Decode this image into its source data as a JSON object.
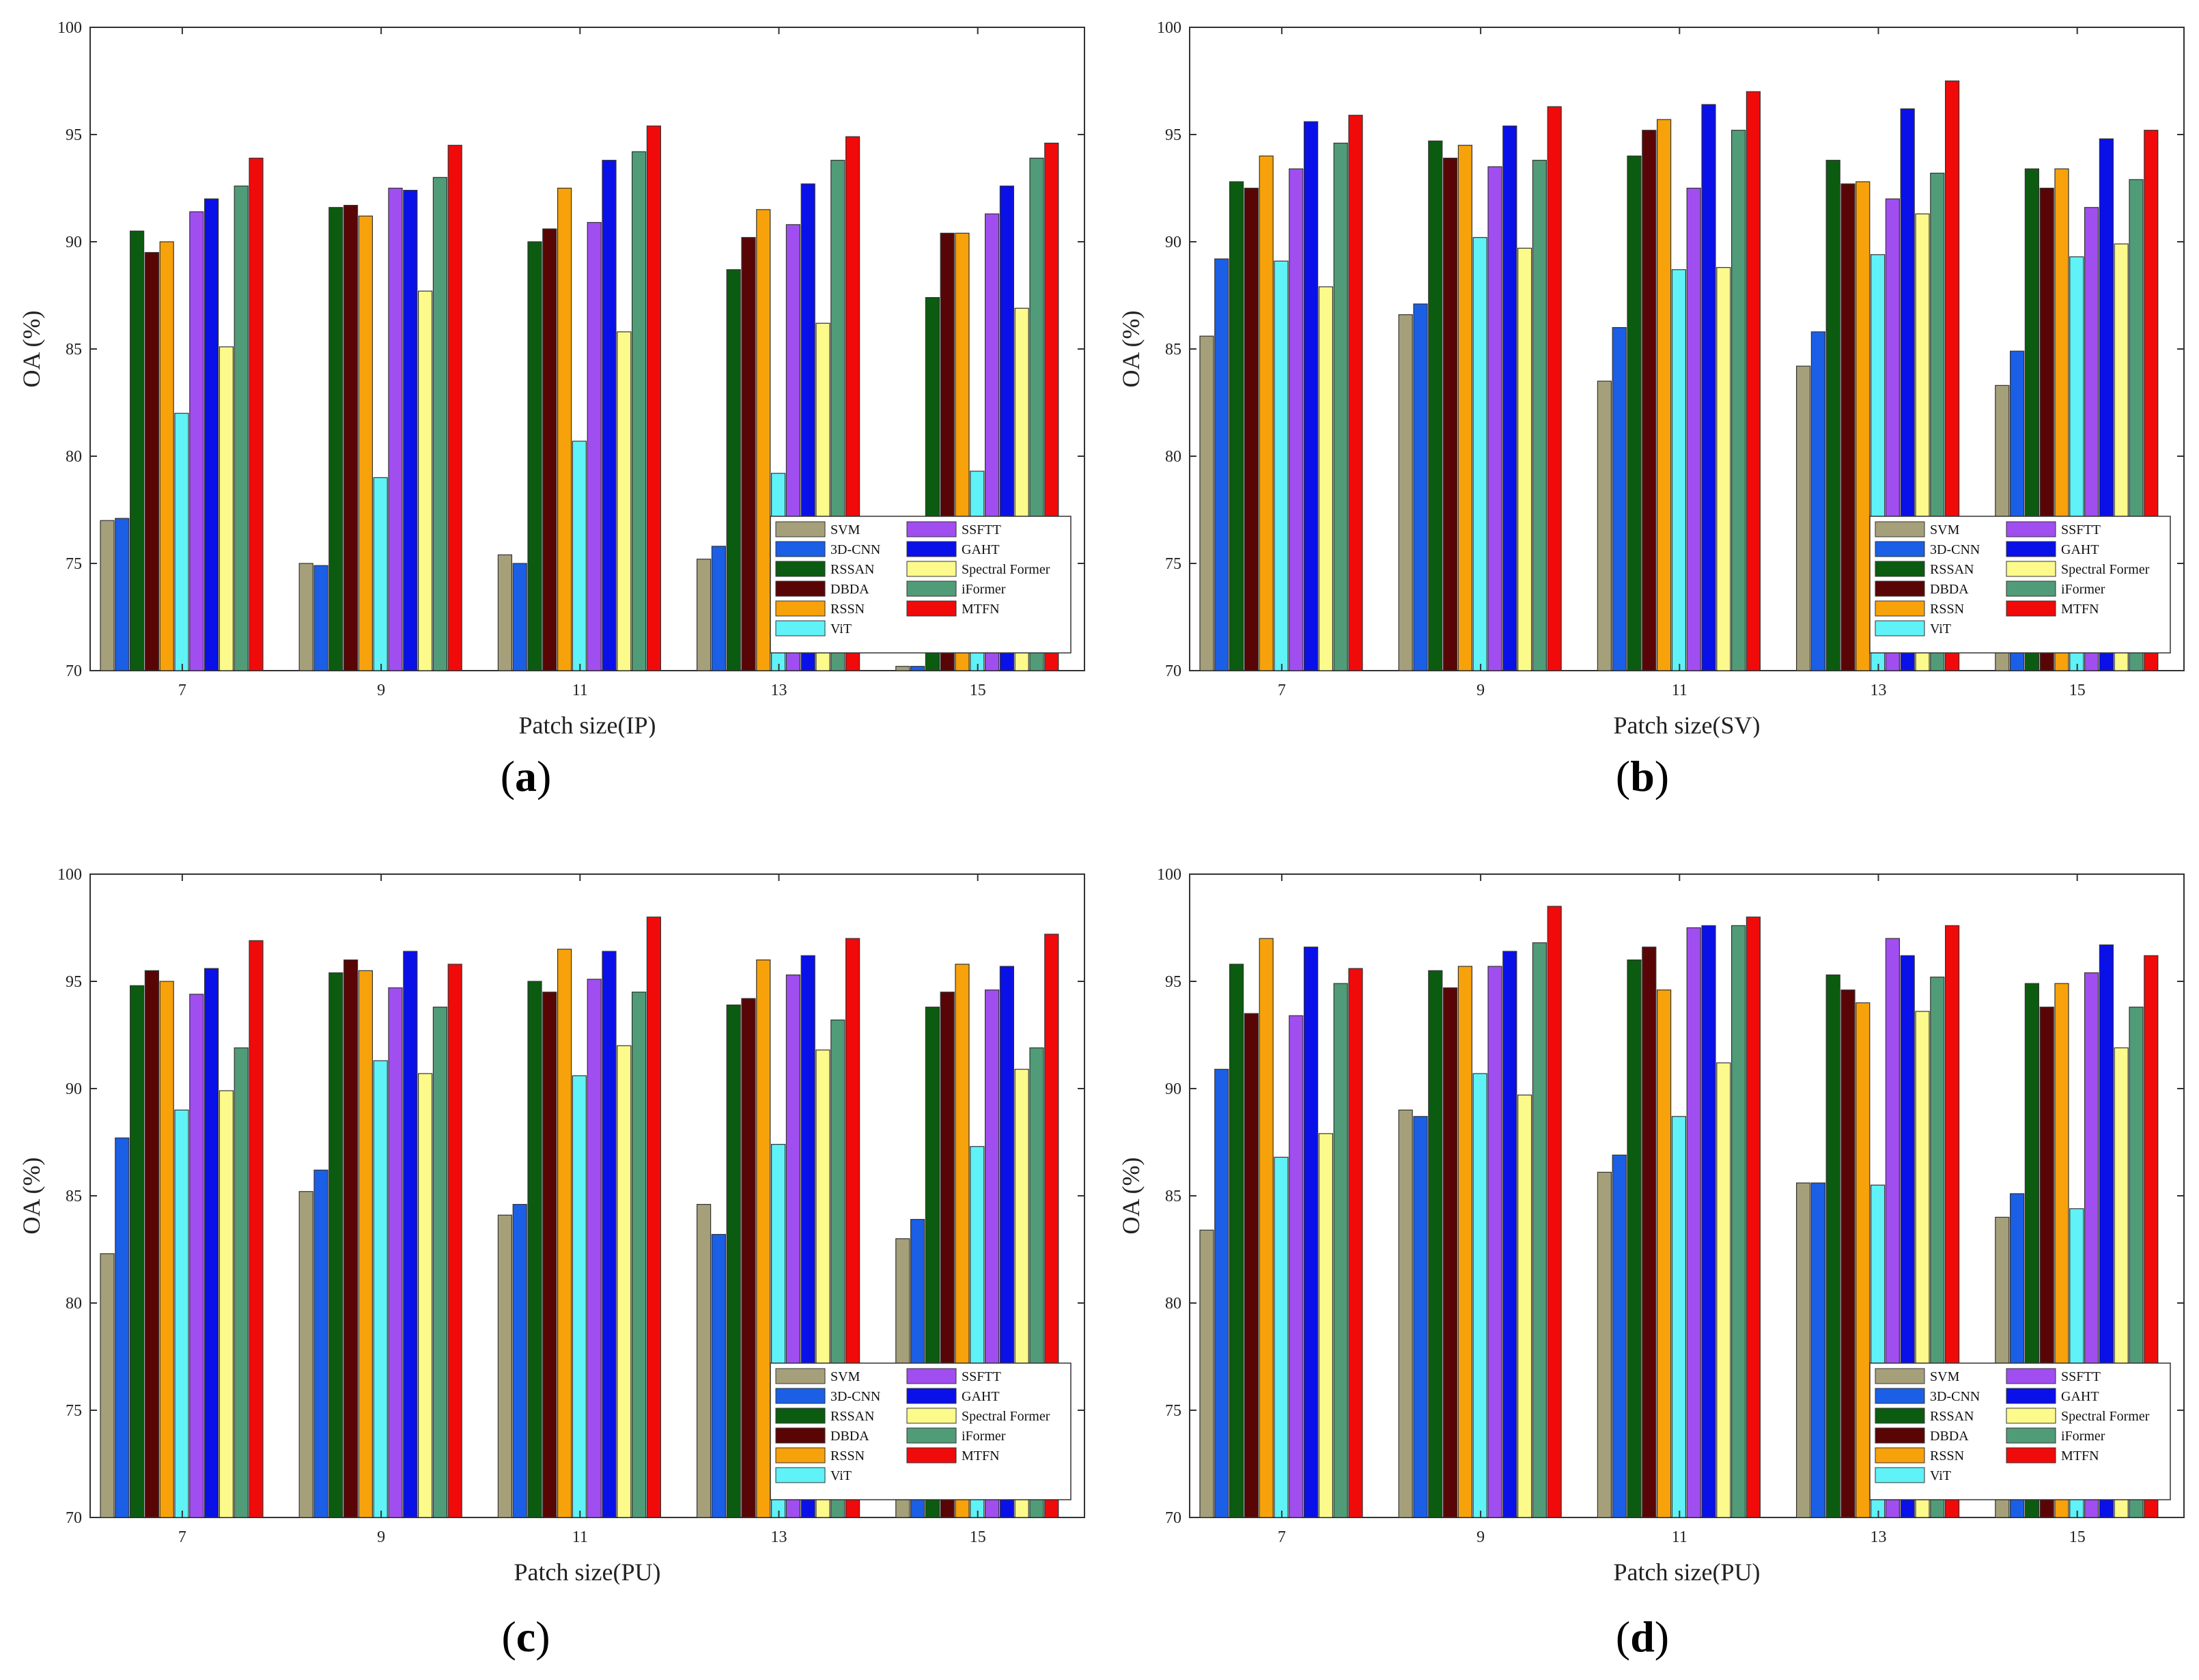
{
  "figure": {
    "panels": [
      {
        "label": "a",
        "xlabel_text": "Patch size(IP)",
        "ylabel_text": "OA (%)"
      },
      {
        "label": "b",
        "xlabel_text": "Patch size(SV)",
        "ylabel_text": "OA (%)"
      },
      {
        "label": "c",
        "xlabel_text": "Patch size(PU)",
        "ylabel_text": "OA (%)"
      },
      {
        "label": "d",
        "xlabel_text": "Patch size(PU)",
        "ylabel_text": "OA (%)"
      }
    ]
  },
  "colors": {
    "SVM": "#a5a07a",
    "3D-CNN": "#1a5fe6",
    "RSSAN": "#0b5c10",
    "DBDA": "#5a0505",
    "RSSN": "#f7a20a",
    "ViT": "#5ff2f7",
    "SSFTT": "#a14ef0",
    "GAHT": "#0a10e8",
    "Spectral Former": "#fbfa8a",
    "iFormer": "#519c78",
    "MTFN": "#f10a0a"
  },
  "chart_data": [
    {
      "type": "bar",
      "title": "",
      "xlabel": "Patch size(IP)",
      "ylabel": "OA (%)",
      "ylim": [
        70,
        100
      ],
      "yticks": [
        70,
        75,
        80,
        85,
        90,
        95,
        100
      ],
      "categories": [
        "7",
        "9",
        "11",
        "13",
        "15"
      ],
      "legend_position": "bottom-right",
      "series": [
        {
          "name": "SVM",
          "values": [
            77.0,
            75.0,
            75.4,
            75.2,
            70.2
          ]
        },
        {
          "name": "3D-CNN",
          "values": [
            77.1,
            74.9,
            75.0,
            75.8,
            70.2
          ]
        },
        {
          "name": "RSSAN",
          "values": [
            90.5,
            91.6,
            90.0,
            88.7,
            87.4
          ]
        },
        {
          "name": "DBDA",
          "values": [
            89.5,
            91.7,
            90.6,
            90.2,
            90.4
          ]
        },
        {
          "name": "RSSN",
          "values": [
            90.0,
            91.2,
            92.5,
            91.5,
            90.4
          ]
        },
        {
          "name": "ViT",
          "values": [
            82.0,
            79.0,
            80.7,
            79.2,
            79.3
          ]
        },
        {
          "name": "SSFTT",
          "values": [
            91.4,
            92.5,
            90.9,
            90.8,
            91.3
          ]
        },
        {
          "name": "GAHT",
          "values": [
            92.0,
            92.4,
            93.8,
            92.7,
            92.6
          ]
        },
        {
          "name": "Spectral Former",
          "values": [
            85.1,
            87.7,
            85.8,
            86.2,
            86.9
          ]
        },
        {
          "name": "iFormer",
          "values": [
            92.6,
            93.0,
            94.2,
            93.8,
            93.9
          ]
        },
        {
          "name": "MTFN",
          "values": [
            93.9,
            94.5,
            95.4,
            94.9,
            94.6
          ]
        }
      ]
    },
    {
      "type": "bar",
      "title": "",
      "xlabel": "Patch size(SV)",
      "ylabel": "OA (%)",
      "ylim": [
        70,
        100
      ],
      "yticks": [
        70,
        75,
        80,
        85,
        90,
        95,
        100
      ],
      "categories": [
        "7",
        "9",
        "11",
        "13",
        "15"
      ],
      "legend_position": "bottom-right",
      "series": [
        {
          "name": "SVM",
          "values": [
            85.6,
            86.6,
            83.5,
            84.2,
            83.3
          ]
        },
        {
          "name": "3D-CNN",
          "values": [
            89.2,
            87.1,
            86.0,
            85.8,
            84.9
          ]
        },
        {
          "name": "RSSAN",
          "values": [
            92.8,
            94.7,
            94.0,
            93.8,
            93.4
          ]
        },
        {
          "name": "DBDA",
          "values": [
            92.5,
            93.9,
            95.2,
            92.7,
            92.5
          ]
        },
        {
          "name": "RSSN",
          "values": [
            94.0,
            94.5,
            95.7,
            92.8,
            93.4
          ]
        },
        {
          "name": "ViT",
          "values": [
            89.1,
            90.2,
            88.7,
            89.4,
            89.3
          ]
        },
        {
          "name": "SSFTT",
          "values": [
            93.4,
            93.5,
            92.5,
            92.0,
            91.6
          ]
        },
        {
          "name": "GAHT",
          "values": [
            95.6,
            95.4,
            96.4,
            96.2,
            94.8
          ]
        },
        {
          "name": "Spectral Former",
          "values": [
            87.9,
            89.7,
            88.8,
            91.3,
            89.9
          ]
        },
        {
          "name": "iFormer",
          "values": [
            94.6,
            93.8,
            95.2,
            93.2,
            92.9
          ]
        },
        {
          "name": "MTFN",
          "values": [
            95.9,
            96.3,
            97.0,
            97.5,
            95.2
          ]
        }
      ]
    },
    {
      "type": "bar",
      "title": "",
      "xlabel": "Patch size(PU)",
      "ylabel": "OA (%)",
      "ylim": [
        70,
        100
      ],
      "yticks": [
        70,
        75,
        80,
        85,
        90,
        95,
        100
      ],
      "categories": [
        "7",
        "9",
        "11",
        "13",
        "15"
      ],
      "legend_position": "bottom-right",
      "series": [
        {
          "name": "SVM",
          "values": [
            82.3,
            85.2,
            84.1,
            84.6,
            83.0
          ]
        },
        {
          "name": "3D-CNN",
          "values": [
            87.7,
            86.2,
            84.6,
            83.2,
            83.9
          ]
        },
        {
          "name": "RSSAN",
          "values": [
            94.8,
            95.4,
            95.0,
            93.9,
            93.8
          ]
        },
        {
          "name": "DBDA",
          "values": [
            95.5,
            96.0,
            94.5,
            94.2,
            94.5
          ]
        },
        {
          "name": "RSSN",
          "values": [
            95.0,
            95.5,
            96.5,
            96.0,
            95.8
          ]
        },
        {
          "name": "ViT",
          "values": [
            89.0,
            91.3,
            90.6,
            87.4,
            87.3
          ]
        },
        {
          "name": "SSFTT",
          "values": [
            94.4,
            94.7,
            95.1,
            95.3,
            94.6
          ]
        },
        {
          "name": "GAHT",
          "values": [
            95.6,
            96.4,
            96.4,
            96.2,
            95.7
          ]
        },
        {
          "name": "Spectral Former",
          "values": [
            89.9,
            90.7,
            92.0,
            91.8,
            90.9
          ]
        },
        {
          "name": "iFormer",
          "values": [
            91.9,
            93.8,
            94.5,
            93.2,
            91.9
          ]
        },
        {
          "name": "MTFN",
          "values": [
            96.9,
            95.8,
            98.0,
            97.0,
            97.2
          ]
        }
      ]
    },
    {
      "type": "bar",
      "title": "",
      "xlabel": "Patch size(PU)",
      "ylabel": "OA (%)",
      "ylim": [
        70,
        100
      ],
      "yticks": [
        70,
        75,
        80,
        85,
        90,
        95,
        100
      ],
      "categories": [
        "7",
        "9",
        "11",
        "13",
        "15"
      ],
      "legend_position": "bottom-right",
      "series": [
        {
          "name": "SVM",
          "values": [
            83.4,
            89.0,
            86.1,
            85.6,
            84.0
          ]
        },
        {
          "name": "3D-CNN",
          "values": [
            90.9,
            88.7,
            86.9,
            85.6,
            85.1
          ]
        },
        {
          "name": "RSSAN",
          "values": [
            95.8,
            95.5,
            96.0,
            95.3,
            94.9
          ]
        },
        {
          "name": "DBDA",
          "values": [
            93.5,
            94.7,
            96.6,
            94.6,
            93.8
          ]
        },
        {
          "name": "RSSN",
          "values": [
            97.0,
            95.7,
            94.6,
            94.0,
            94.9
          ]
        },
        {
          "name": "ViT",
          "values": [
            86.8,
            90.7,
            88.7,
            85.5,
            84.4
          ]
        },
        {
          "name": "SSFTT",
          "values": [
            93.4,
            95.7,
            97.5,
            97.0,
            95.4
          ]
        },
        {
          "name": "GAHT",
          "values": [
            96.6,
            96.4,
            97.6,
            96.2,
            96.7
          ]
        },
        {
          "name": "Spectral Former",
          "values": [
            87.9,
            89.7,
            91.2,
            93.6,
            91.9
          ]
        },
        {
          "name": "iFormer",
          "values": [
            94.9,
            96.8,
            97.6,
            95.2,
            93.8
          ]
        },
        {
          "name": "MTFN",
          "values": [
            95.6,
            98.5,
            98.0,
            97.6,
            96.2
          ]
        }
      ]
    }
  ]
}
